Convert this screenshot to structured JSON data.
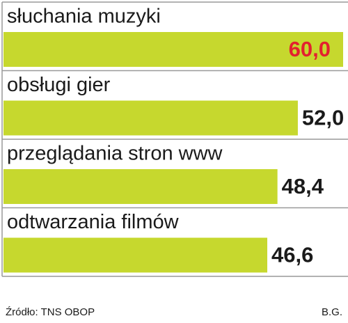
{
  "chart_data": {
    "type": "bar",
    "orientation": "horizontal",
    "categories": [
      "słuchania muzyki",
      "obsługi gier",
      "przeglądania stron www",
      "odtwarzania filmów"
    ],
    "values": [
      60.0,
      52.0,
      48.4,
      46.6
    ],
    "value_labels": [
      "60,0",
      "52,0",
      "48,4",
      "46,6"
    ],
    "value_label_colors": [
      "#e3202f",
      "#1a1a1a",
      "#1a1a1a",
      "#1a1a1a"
    ],
    "color": "#c6d82e",
    "xlim": [
      0,
      60
    ],
    "source": "Źródło: TNS OBOP",
    "author": "B.G."
  }
}
